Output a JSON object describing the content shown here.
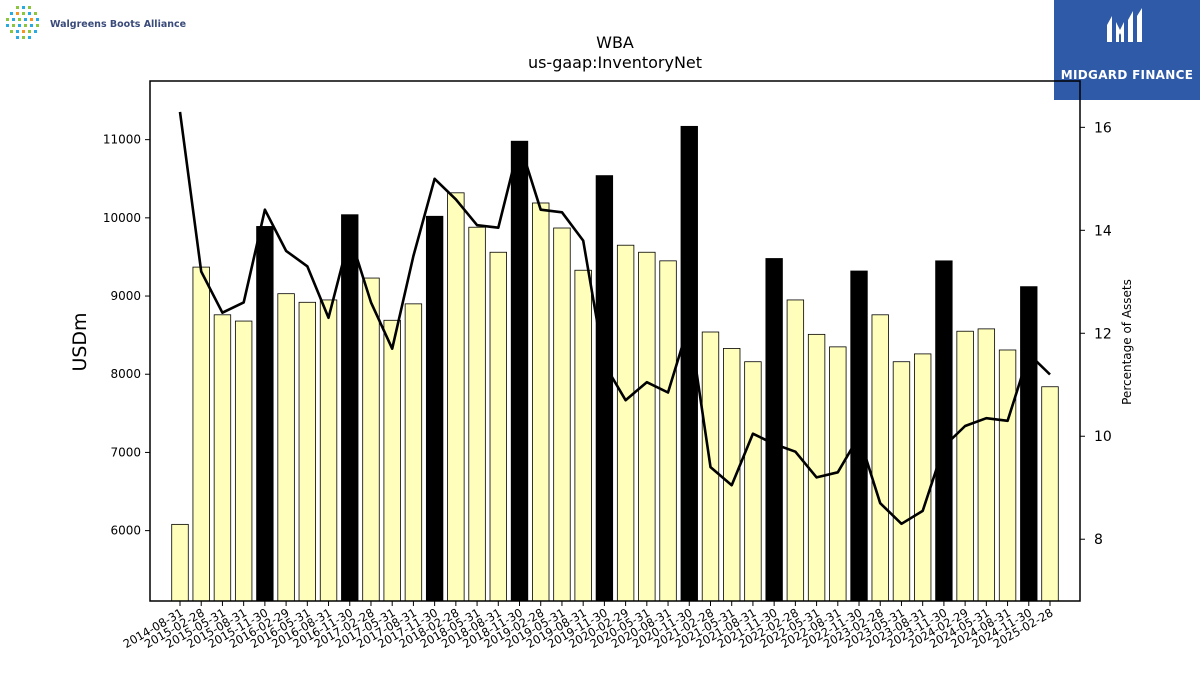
{
  "header": {
    "company_logo_text": "Walgreens Boots Alliance",
    "brand_name": "MIDGARD FINANCE"
  },
  "chart_data": {
    "type": "bar",
    "title": "WBA",
    "subtitle": "us-gaap:InventoryNet",
    "ylabel": "USDm",
    "y2label": "Percentage of Assets",
    "ylim": [
      5100,
      11750
    ],
    "y2lim": [
      6.8,
      16.9
    ],
    "yticks": [
      6000,
      7000,
      8000,
      9000,
      10000,
      11000
    ],
    "y2ticks": [
      8,
      10,
      12,
      14,
      16
    ],
    "categories": [
      "2014-08-31",
      "2015-02-28",
      "2015-05-31",
      "2015-08-31",
      "2015-11-30",
      "2016-02-29",
      "2016-05-31",
      "2016-08-31",
      "2016-11-30",
      "2017-02-28",
      "2017-05-31",
      "2017-08-31",
      "2017-11-30",
      "2018-02-28",
      "2018-05-31",
      "2018-08-31",
      "2018-11-30",
      "2019-02-28",
      "2019-05-31",
      "2019-08-31",
      "2019-11-30",
      "2020-02-29",
      "2020-05-31",
      "2020-08-31",
      "2020-11-30",
      "2021-02-28",
      "2021-05-31",
      "2021-08-31",
      "2021-11-30",
      "2022-02-28",
      "2022-05-31",
      "2022-08-31",
      "2022-11-30",
      "2023-02-28",
      "2023-05-31",
      "2023-08-31",
      "2023-11-30",
      "2024-02-29",
      "2024-05-31",
      "2024-08-31",
      "2024-11-30",
      "2025-02-28"
    ],
    "series": [
      {
        "name": "InventoryNet",
        "type": "bar",
        "values": [
          6080,
          9370,
          8760,
          8680,
          9890,
          9030,
          8920,
          8950,
          10040,
          9230,
          8690,
          8900,
          10020,
          10320,
          9880,
          9560,
          10980,
          10190,
          9870,
          9330,
          10540,
          9650,
          9560,
          9450,
          11170,
          8540,
          8330,
          8160,
          9480,
          8950,
          8510,
          8350,
          9320,
          8760,
          8160,
          8260,
          9450,
          8550,
          8580,
          8310,
          9120,
          7840
        ],
        "highlight": [
          false,
          false,
          false,
          false,
          true,
          false,
          false,
          false,
          true,
          false,
          false,
          false,
          true,
          false,
          false,
          false,
          true,
          false,
          false,
          false,
          true,
          false,
          false,
          false,
          true,
          false,
          false,
          false,
          true,
          false,
          false,
          false,
          true,
          false,
          false,
          false,
          true,
          false,
          false,
          false,
          true,
          false
        ],
        "bar_color": "#ffffbb",
        "highlight_color": "#000000"
      },
      {
        "name": "Percentage of Assets",
        "type": "line",
        "axis": "right",
        "values": [
          16.3,
          13.2,
          12.4,
          12.6,
          14.4,
          13.6,
          13.3,
          12.3,
          13.9,
          12.6,
          11.7,
          13.5,
          15.0,
          14.6,
          14.1,
          14.05,
          15.7,
          14.4,
          14.35,
          13.8,
          11.4,
          10.7,
          11.05,
          10.85,
          12.2,
          9.4,
          9.05,
          10.05,
          9.85,
          9.7,
          9.2,
          9.3,
          10.0,
          8.7,
          8.3,
          8.55,
          9.8,
          10.2,
          10.35,
          10.3,
          11.6,
          11.2
        ],
        "color": "#000000"
      }
    ]
  }
}
